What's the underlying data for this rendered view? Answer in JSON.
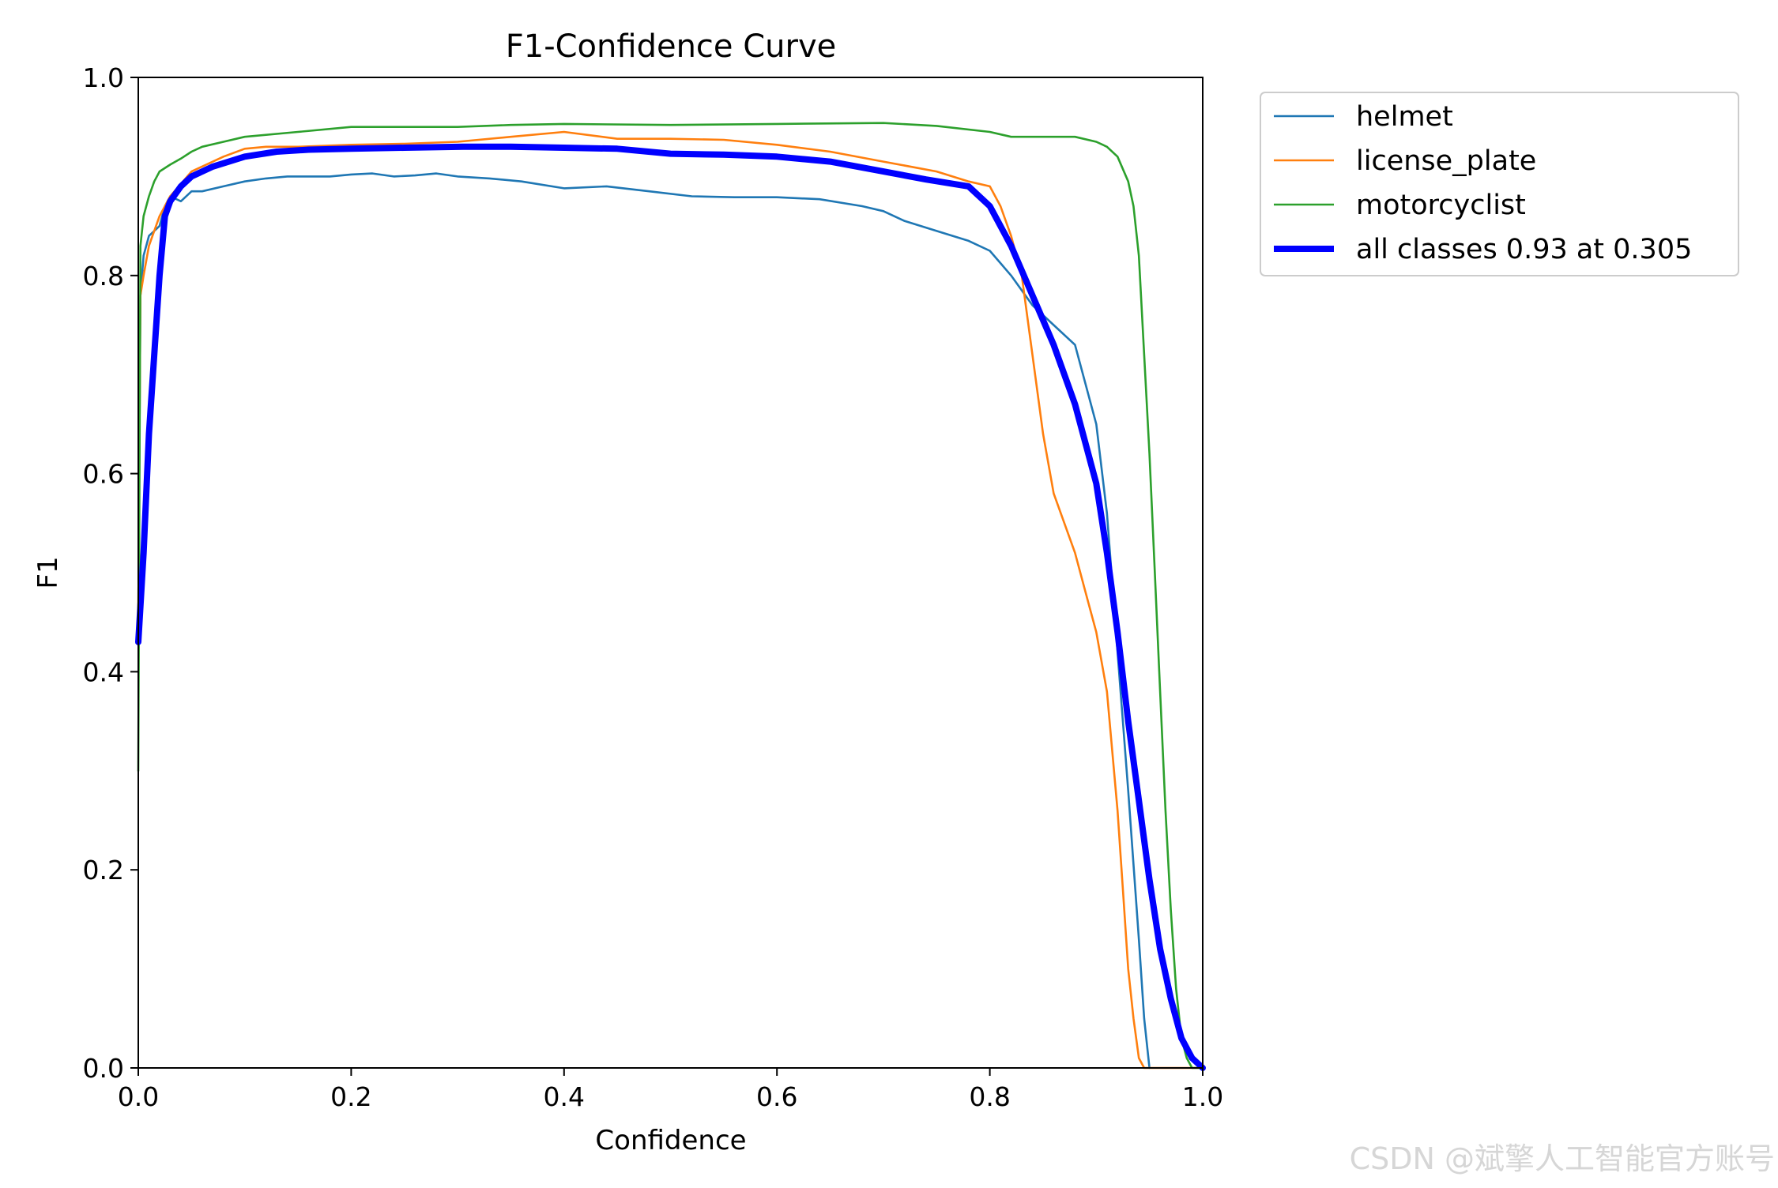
{
  "chart_data": {
    "type": "line",
    "title": "F1-Confidence Curve",
    "xlabel": "Confidence",
    "ylabel": "F1",
    "xlim": [
      0.0,
      1.0
    ],
    "ylim": [
      0.0,
      1.0
    ],
    "xticks": [
      "0.0",
      "0.2",
      "0.4",
      "0.6",
      "0.8",
      "1.0"
    ],
    "yticks": [
      "0.0",
      "0.2",
      "0.4",
      "0.6",
      "0.8",
      "1.0"
    ],
    "grid": false,
    "legend_position": "outside-top-right",
    "series": [
      {
        "name": "helmet",
        "color": "#1f77b4",
        "width": "thin",
        "x": [
          0.0,
          0.002,
          0.005,
          0.01,
          0.015,
          0.02,
          0.025,
          0.03,
          0.04,
          0.05,
          0.06,
          0.08,
          0.1,
          0.12,
          0.14,
          0.16,
          0.18,
          0.2,
          0.22,
          0.24,
          0.26,
          0.28,
          0.3,
          0.33,
          0.36,
          0.4,
          0.44,
          0.48,
          0.52,
          0.56,
          0.6,
          0.64,
          0.68,
          0.7,
          0.72,
          0.75,
          0.78,
          0.8,
          0.82,
          0.84,
          0.86,
          0.88,
          0.9,
          0.91,
          0.92,
          0.93,
          0.94,
          0.945,
          0.95
        ],
        "y": [
          0.45,
          0.78,
          0.82,
          0.84,
          0.845,
          0.85,
          0.87,
          0.88,
          0.875,
          0.885,
          0.885,
          0.89,
          0.895,
          0.898,
          0.9,
          0.9,
          0.9,
          0.902,
          0.903,
          0.9,
          0.901,
          0.903,
          0.9,
          0.898,
          0.895,
          0.888,
          0.89,
          0.885,
          0.88,
          0.879,
          0.879,
          0.877,
          0.87,
          0.865,
          0.855,
          0.845,
          0.835,
          0.825,
          0.8,
          0.77,
          0.75,
          0.73,
          0.65,
          0.56,
          0.42,
          0.28,
          0.13,
          0.05,
          0.0
        ]
      },
      {
        "name": "license_plate",
        "color": "#ff7f0e",
        "width": "thin",
        "x": [
          0.0,
          0.002,
          0.005,
          0.01,
          0.02,
          0.03,
          0.05,
          0.08,
          0.1,
          0.12,
          0.15,
          0.2,
          0.25,
          0.3,
          0.35,
          0.4,
          0.45,
          0.5,
          0.55,
          0.6,
          0.65,
          0.7,
          0.75,
          0.78,
          0.8,
          0.81,
          0.82,
          0.83,
          0.84,
          0.85,
          0.86,
          0.87,
          0.88,
          0.89,
          0.9,
          0.91,
          0.92,
          0.925,
          0.93,
          0.935,
          0.94,
          0.945,
          0.95,
          1.0
        ],
        "y": [
          0.45,
          0.78,
          0.8,
          0.83,
          0.86,
          0.88,
          0.905,
          0.92,
          0.928,
          0.93,
          0.93,
          0.932,
          0.933,
          0.935,
          0.94,
          0.945,
          0.938,
          0.938,
          0.937,
          0.932,
          0.925,
          0.915,
          0.905,
          0.895,
          0.89,
          0.87,
          0.84,
          0.8,
          0.72,
          0.64,
          0.58,
          0.55,
          0.52,
          0.48,
          0.44,
          0.38,
          0.26,
          0.18,
          0.1,
          0.05,
          0.01,
          0.0,
          0.0,
          0.0
        ]
      },
      {
        "name": "motorcyclist",
        "color": "#2ca02c",
        "width": "thin",
        "x": [
          0.0,
          0.002,
          0.005,
          0.01,
          0.015,
          0.02,
          0.03,
          0.04,
          0.05,
          0.06,
          0.08,
          0.1,
          0.15,
          0.2,
          0.25,
          0.3,
          0.35,
          0.4,
          0.5,
          0.6,
          0.7,
          0.75,
          0.8,
          0.82,
          0.85,
          0.88,
          0.9,
          0.91,
          0.92,
          0.93,
          0.935,
          0.94,
          0.945,
          0.95,
          0.955,
          0.96,
          0.965,
          0.97,
          0.975,
          0.98,
          0.985,
          0.99,
          1.0
        ],
        "y": [
          0.3,
          0.83,
          0.86,
          0.88,
          0.895,
          0.905,
          0.912,
          0.918,
          0.925,
          0.93,
          0.935,
          0.94,
          0.945,
          0.95,
          0.95,
          0.95,
          0.952,
          0.953,
          0.952,
          0.953,
          0.954,
          0.951,
          0.945,
          0.94,
          0.94,
          0.94,
          0.935,
          0.93,
          0.92,
          0.895,
          0.87,
          0.82,
          0.72,
          0.62,
          0.5,
          0.38,
          0.26,
          0.16,
          0.08,
          0.03,
          0.01,
          0.0,
          0.0
        ]
      },
      {
        "name": "all classes 0.93 at 0.305",
        "color": "#0000ff",
        "width": "thick",
        "x": [
          0.0,
          0.005,
          0.01,
          0.02,
          0.025,
          0.03,
          0.04,
          0.05,
          0.07,
          0.1,
          0.13,
          0.16,
          0.2,
          0.25,
          0.305,
          0.35,
          0.4,
          0.45,
          0.5,
          0.55,
          0.6,
          0.65,
          0.7,
          0.74,
          0.78,
          0.8,
          0.82,
          0.84,
          0.86,
          0.88,
          0.9,
          0.91,
          0.92,
          0.93,
          0.94,
          0.95,
          0.96,
          0.97,
          0.98,
          0.99,
          1.0
        ],
        "y": [
          0.43,
          0.52,
          0.64,
          0.8,
          0.86,
          0.875,
          0.89,
          0.9,
          0.91,
          0.92,
          0.925,
          0.927,
          0.928,
          0.929,
          0.93,
          0.93,
          0.929,
          0.928,
          0.923,
          0.922,
          0.92,
          0.915,
          0.905,
          0.897,
          0.89,
          0.87,
          0.83,
          0.78,
          0.73,
          0.67,
          0.59,
          0.52,
          0.44,
          0.35,
          0.27,
          0.19,
          0.12,
          0.07,
          0.03,
          0.01,
          0.0
        ]
      }
    ]
  },
  "watermark": "CSDN @斌擎人工智能官方账号"
}
